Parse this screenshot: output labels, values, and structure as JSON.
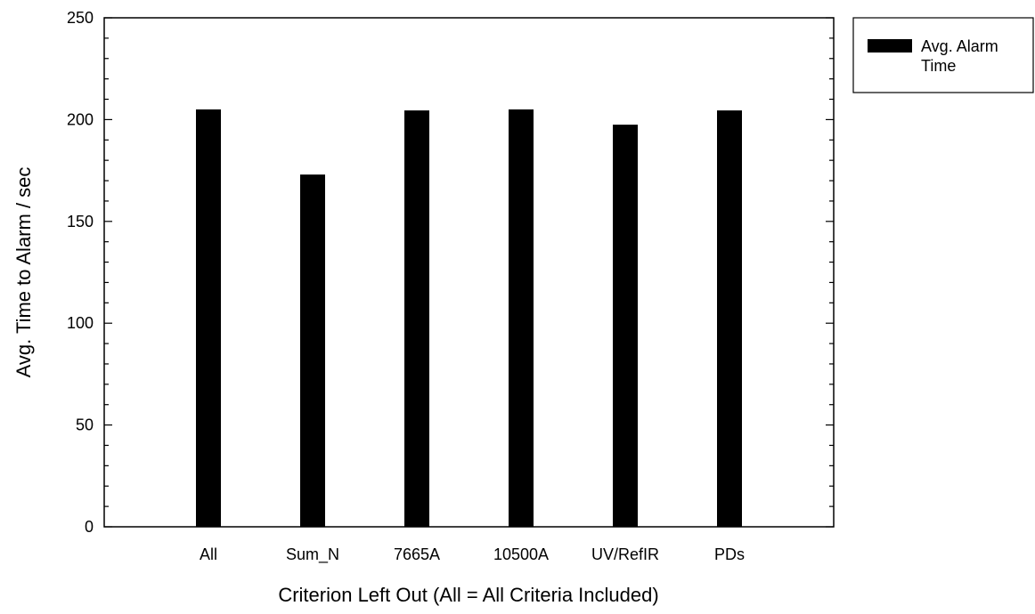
{
  "chart_data": {
    "type": "bar",
    "categories": [
      "All",
      "Sum_N",
      "7665A",
      "10500A",
      "UV/RefIR",
      "PDs"
    ],
    "series": [
      {
        "name": "Avg. Alarm Time",
        "values": [
          205,
          173,
          204.5,
          205,
          197.5,
          204.5
        ]
      }
    ],
    "xlabel": "Criterion Left Out (All = All Criteria Included)",
    "ylabel": "Avg. Time to Alarm / sec",
    "ylim": [
      0,
      250
    ],
    "yticks": [
      0,
      50,
      100,
      150,
      200,
      250
    ],
    "grid": false,
    "legend_position": "top-right-outside",
    "bar_color": "#000000",
    "legend": {
      "line1": "Avg. Alarm",
      "line2": "Time"
    }
  }
}
